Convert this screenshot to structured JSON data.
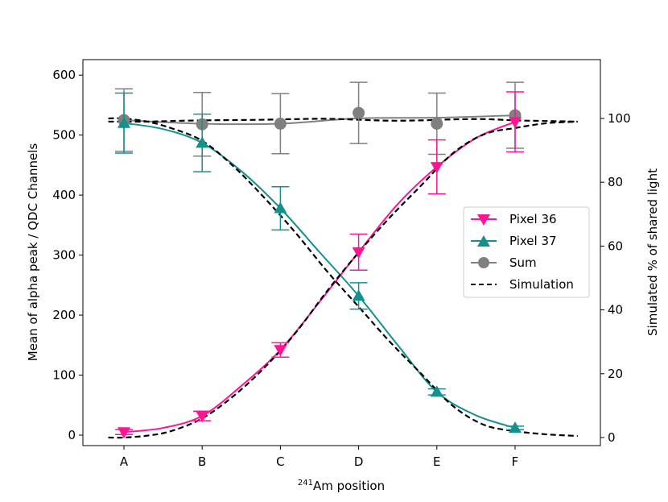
{
  "chart_data": {
    "type": "line",
    "title": "",
    "categories": [
      "A",
      "B",
      "C",
      "D",
      "E",
      "F"
    ],
    "xlabel_sup": "241",
    "xlabel_main": "Am position",
    "ylabel": "Mean of alpha peak / QDC Channels",
    "ylabel_right": "Simulated % of shared light",
    "ylim": [
      -20,
      625
    ],
    "ylim_right": [
      -3.8,
      117.9
    ],
    "yticks": [
      0,
      100,
      200,
      300,
      400,
      500,
      600
    ],
    "yticks_right": [
      0,
      20,
      40,
      60,
      80,
      100
    ],
    "legend_position": "center-right",
    "series": [
      {
        "name": "Pixel 36",
        "color": "#ff1493",
        "marker": "triangle-down",
        "values": [
          5,
          32,
          142,
          305,
          447,
          522
        ],
        "errors": [
          4,
          8,
          12,
          30,
          45,
          50
        ],
        "curve_x": [
          0,
          0.5,
          1,
          1.5,
          2,
          2.5,
          3,
          3.5,
          4,
          4.5,
          5
        ],
        "curve_y": [
          5,
          12,
          32,
          82,
          142,
          222,
          305,
          385,
          447,
          495,
          522
        ]
      },
      {
        "name": "Pixel 37",
        "color": "#13918c",
        "marker": "triangle-up",
        "values": [
          520,
          487,
          378,
          232,
          72,
          12
        ],
        "errors": [
          50,
          48,
          36,
          22,
          5,
          3
        ],
        "curve_x": [
          0,
          0.5,
          1,
          1.5,
          2,
          2.5,
          3,
          3.5,
          4,
          4.5,
          5
        ],
        "curve_y": [
          520,
          510,
          487,
          440,
          378,
          305,
          232,
          150,
          72,
          33,
          12
        ]
      },
      {
        "name": "Sum",
        "color": "#808080",
        "marker": "circle",
        "values": [
          525,
          518,
          519,
          537,
          519,
          533
        ],
        "errors": [
          52,
          53,
          50,
          51,
          51,
          55
        ],
        "curve_x": [
          0,
          1,
          2,
          3,
          4,
          5
        ],
        "curve_y": [
          525,
          519,
          519,
          528,
          529,
          533
        ]
      }
    ],
    "simulation": {
      "name": "Simulation",
      "color": "#000000",
      "style": "dashed",
      "x": [
        -0.2,
        0,
        0.3,
        0.6,
        1,
        1.4,
        1.8,
        2.2,
        2.6,
        3,
        3.4,
        3.8,
        4.2,
        4.6,
        5,
        5.4,
        5.8
      ],
      "rising": [
        0,
        0,
        0.6,
        2,
        6,
        13,
        22,
        33,
        46,
        58,
        69,
        79,
        89,
        95,
        97,
        98.5,
        99
      ],
      "falling": [
        100,
        100,
        99,
        97,
        93,
        85,
        75,
        64,
        52,
        41,
        30,
        20,
        10,
        4,
        2,
        1,
        0.5
      ],
      "sum": [
        99,
        99,
        99,
        99.2,
        99.4,
        99.5,
        99.6,
        99.8,
        99.9,
        99.6,
        99.3,
        99.4,
        99.7,
        99.8,
        99.4,
        99.2,
        99
      ]
    }
  }
}
